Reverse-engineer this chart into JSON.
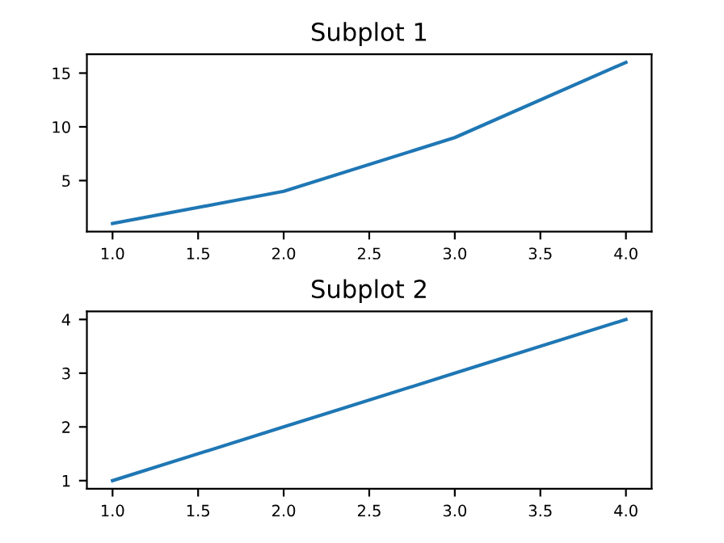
{
  "chart_data": [
    {
      "type": "line",
      "title": "Subplot 1",
      "x": [
        1,
        2,
        3,
        4
      ],
      "series": [
        {
          "color": "#1f77b4",
          "values": [
            1,
            4,
            9,
            16
          ]
        }
      ],
      "xlim": [
        0.85,
        4.15
      ],
      "ylim": [
        0.25,
        16.75
      ],
      "xticks": [
        {
          "value": 1,
          "label": "1.0"
        },
        {
          "value": 1.5,
          "label": "1.5"
        },
        {
          "value": 2,
          "label": "2.0"
        },
        {
          "value": 2.5,
          "label": "2.5"
        },
        {
          "value": 3,
          "label": "3.0"
        },
        {
          "value": 3.5,
          "label": "3.5"
        },
        {
          "value": 4,
          "label": "4.0"
        }
      ],
      "yticks": [
        5,
        10,
        15
      ],
      "grid": false,
      "legend": false
    },
    {
      "type": "line",
      "title": "Subplot 2",
      "x": [
        1,
        2,
        3,
        4
      ],
      "series": [
        {
          "color": "#1f77b4",
          "values": [
            1,
            2,
            3,
            4
          ]
        }
      ],
      "xlim": [
        0.85,
        4.15
      ],
      "ylim": [
        0.85,
        4.15
      ],
      "xticks": [
        {
          "value": 1,
          "label": "1.0"
        },
        {
          "value": 1.5,
          "label": "1.5"
        },
        {
          "value": 2,
          "label": "2.0"
        },
        {
          "value": 2.5,
          "label": "2.5"
        },
        {
          "value": 3,
          "label": "3.0"
        },
        {
          "value": 3.5,
          "label": "3.5"
        },
        {
          "value": 4,
          "label": "4.0"
        }
      ],
      "yticks": [
        1,
        2,
        3,
        4
      ],
      "grid": false,
      "legend": false
    }
  ]
}
